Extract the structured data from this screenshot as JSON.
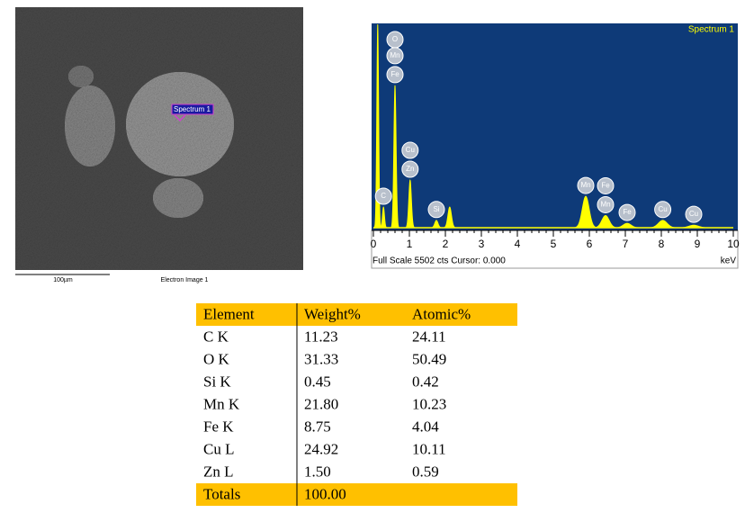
{
  "sem_image": {
    "spectrum_marker": "Spectrum 1",
    "scale_bar": "100µm",
    "caption": "Electron Image 1"
  },
  "chart_data": {
    "type": "spectrum",
    "title": "Spectrum 1",
    "x_label": "keV",
    "footer": "Full Scale 5502 cts Cursor: 0.000",
    "x": [
      0.12,
      0.28,
      0.6,
      1.02,
      1.75,
      2.12,
      5.9,
      6.45,
      7.05,
      8.04,
      8.9
    ],
    "values": [
      5502,
      560,
      3850,
      1290,
      200,
      560,
      850,
      330,
      120,
      200,
      70
    ],
    "peak_labels": [
      null,
      [
        "C"
      ],
      [
        "O",
        "Mn",
        "Fe"
      ],
      [
        "Cu",
        "Zn"
      ],
      [
        "Si"
      ],
      null,
      [
        "Mn"
      ],
      [
        "Fe",
        "Mn"
      ],
      [
        "Fe"
      ],
      [
        "Cu"
      ],
      [
        "Cu"
      ]
    ],
    "color": "#ffff00",
    "background": "#0e3a78",
    "xlim": [
      0,
      10
    ],
    "ylim": [
      0,
      5502
    ],
    "xticks": [
      0,
      1,
      2,
      3,
      4,
      5,
      6,
      7,
      8,
      9,
      10
    ]
  },
  "table": {
    "header": [
      "Element",
      "Weight%",
      "Atomic%"
    ],
    "rows": [
      [
        "C K",
        "11.23",
        "24.11"
      ],
      [
        "O K",
        "31.33",
        "50.49"
      ],
      [
        "Si K",
        "0.45",
        "0.42"
      ],
      [
        "Mn K",
        "21.80",
        "10.23"
      ],
      [
        "Fe K",
        "8.75",
        "4.04"
      ],
      [
        "Cu L",
        "24.92",
        "10.11"
      ],
      [
        "Zn L",
        "1.50",
        "0.59"
      ]
    ],
    "totals": [
      "Totals",
      "100.00"
    ],
    "highlight_color": "#ffc000"
  }
}
